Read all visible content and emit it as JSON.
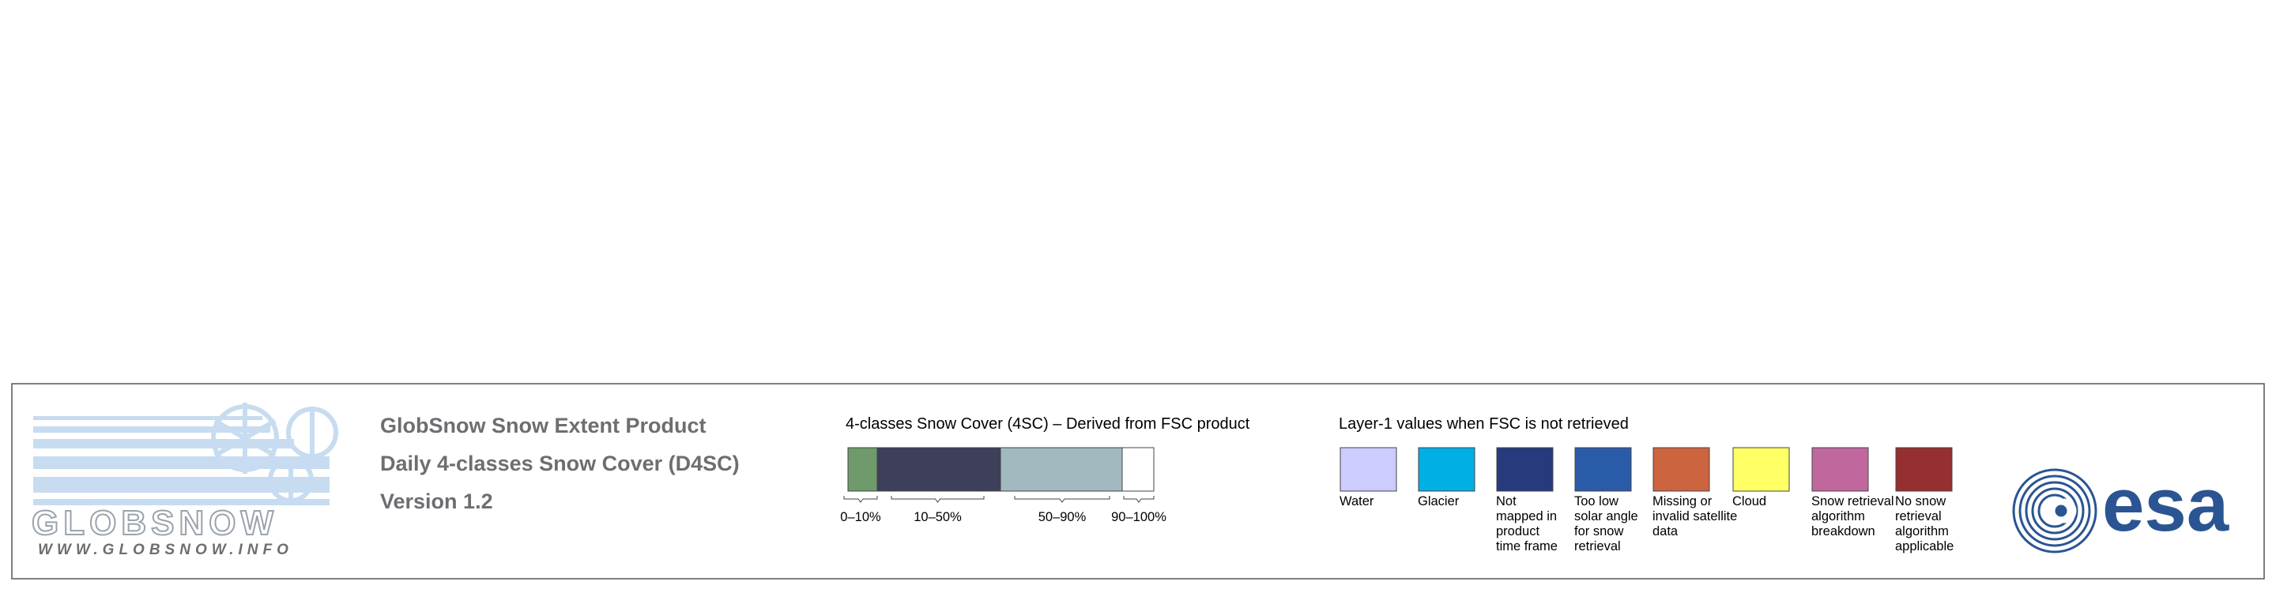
{
  "logo": {
    "name": "GLOBSNOW",
    "url": "WWW.GLOBSNOW.INFO"
  },
  "header": {
    "lines": [
      "GlobSnow Snow Extent Product",
      "Daily 4-classes Snow Cover (D4SC)",
      "Version 1.2"
    ]
  },
  "snow_cover_legend": {
    "title": "4-classes Snow Cover (4SC) – Derived from FSC product",
    "classes": [
      {
        "label": "0–10%",
        "color": "#6f9a6b"
      },
      {
        "label": "10–50%",
        "color": "#3e3f5a"
      },
      {
        "label": "50–90%",
        "color": "#a2babf"
      },
      {
        "label": "90–100%",
        "color": "#ffffff"
      }
    ]
  },
  "layer1_legend": {
    "title": "Layer-1 values when FSC is not retrieved",
    "items": [
      {
        "lines": [
          "Water"
        ],
        "color": "#ccccff"
      },
      {
        "lines": [
          "Glacier"
        ],
        "color": "#00b0e4"
      },
      {
        "lines": [
          "Not",
          "mapped in",
          "product",
          "time frame"
        ],
        "color": "#273a7c"
      },
      {
        "lines": [
          "Too low",
          "solar angle",
          "for snow",
          "retrieval"
        ],
        "color": "#2a5ba8"
      },
      {
        "lines": [
          "Missing or",
          "invalid satellite",
          "data"
        ],
        "color": "#cc6440"
      },
      {
        "lines": [
          "Cloud"
        ],
        "color": "#ffff66"
      },
      {
        "lines": [
          "Snow retrieval",
          "algorithm",
          "breakdown"
        ],
        "color": "#c0679e"
      },
      {
        "lines": [
          "No snow",
          "retrieval",
          "algorithm",
          "applicable"
        ],
        "color": "#963030"
      }
    ]
  },
  "agency_logo": {
    "text": "esa"
  }
}
